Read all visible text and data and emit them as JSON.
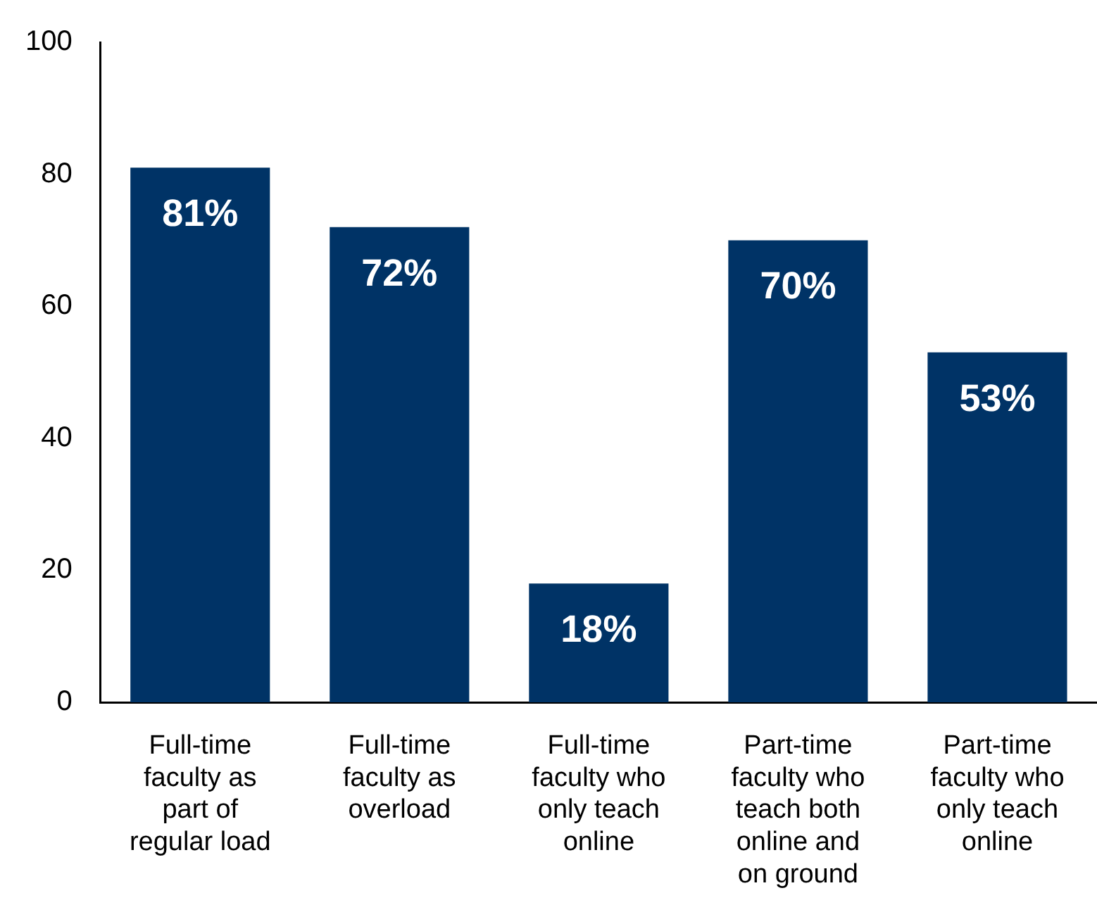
{
  "chart_data": {
    "type": "bar",
    "categories": [
      "Full-time faculty as part of regular load",
      "Full-time faculty as overload",
      "Full-time faculty who only teach online",
      "Part-time faculty who teach both online and on ground",
      "Part-time faculty who only teach online"
    ],
    "values": [
      81,
      72,
      18,
      70,
      53
    ],
    "value_labels": [
      "81%",
      "72%",
      "18%",
      "70%",
      "53%"
    ],
    "color": "#003366",
    "ylim": [
      0,
      100
    ],
    "yticks": [
      0,
      20,
      40,
      60,
      80,
      100
    ],
    "grid": false,
    "legend": false
  }
}
